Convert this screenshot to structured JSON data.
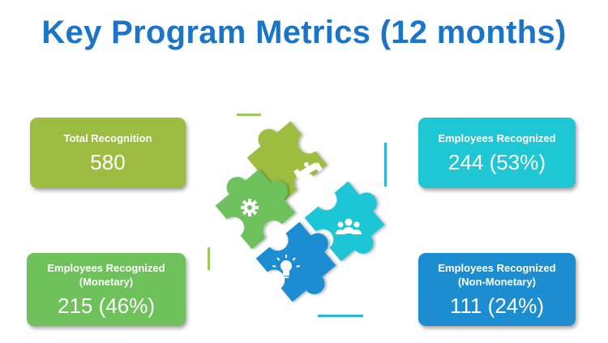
{
  "title": "Key Program Metrics (12 months)",
  "cards": {
    "total": {
      "label": "Total Recognition",
      "value": "580"
    },
    "employees": {
      "label": "Employees Recognized",
      "value": "244 (53%)"
    },
    "monetary": {
      "label_line1": "Employees Recognized",
      "label_line2": "(Monetary)",
      "value": "215 (46%)"
    },
    "non_monetary": {
      "label_line1": "Employees Recognized",
      "label_line2": "(Non-Monetary)",
      "value": "111 (24%)"
    }
  },
  "colors": {
    "title": "#1a74c8",
    "lime": "#9cbd41",
    "cyan": "#1fc6d4",
    "green": "#6ec15b",
    "blue": "#1d8dd2"
  },
  "icons": {
    "green_piece": "gear-icon",
    "lime_piece": "handshake-icon",
    "cyan_piece": "people-icon",
    "blue_piece": "lightbulb-icon"
  }
}
